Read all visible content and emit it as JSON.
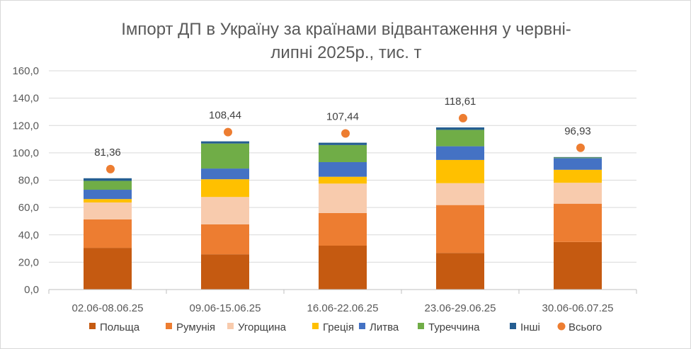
{
  "chart_data": {
    "type": "bar",
    "stacked": true,
    "title_line1": "Імпорт ДП в Україну за країнами відвантаження у червні-",
    "title_line2": "липні 2025р., тис. т",
    "ylim": [
      0,
      160
    ],
    "y_ticks": [
      "0,0",
      "20,0",
      "40,0",
      "60,0",
      "80,0",
      "100,0",
      "120,0",
      "140,0",
      "160,0"
    ],
    "y_tick_values": [
      0,
      20,
      40,
      60,
      80,
      100,
      120,
      140,
      160
    ],
    "grid": true,
    "legend_position": "bottom",
    "categories": [
      "02.06-08.06.25",
      "09.06-15.06.25",
      "16.06-22.06.25",
      "23.06-29.06.25",
      "30.06-06.07.25"
    ],
    "series": [
      {
        "name": "Польща",
        "color": "#c55a11",
        "values": [
          30.5,
          25.8,
          32.1,
          26.8,
          34.8
        ]
      },
      {
        "name": "Румунія",
        "color": "#ed7d31",
        "values": [
          20.8,
          21.9,
          23.9,
          35.0,
          28.0
        ]
      },
      {
        "name": "Угорщина",
        "color": "#f8cbad",
        "values": [
          12.4,
          20.0,
          21.5,
          16.0,
          15.3
        ]
      },
      {
        "name": "Греція",
        "color": "#ffc000",
        "values": [
          2.5,
          13.0,
          5.0,
          17.0,
          9.5
        ]
      },
      {
        "name": "Литва",
        "color": "#4472c4",
        "values": [
          6.8,
          7.8,
          10.7,
          10.0,
          8.5
        ]
      },
      {
        "name": "Туреччина",
        "color": "#70ad47",
        "values": [
          6.5,
          18.3,
          12.5,
          12.0,
          0.5
        ]
      },
      {
        "name": "Інші",
        "color": "#255e91",
        "values": [
          1.9,
          1.6,
          1.7,
          1.8,
          0.3
        ]
      }
    ],
    "total": {
      "name": "Всього",
      "color": "#ed7d31",
      "values": [
        81.36,
        108.44,
        107.44,
        118.61,
        96.93
      ],
      "labels": [
        "81,36",
        "108,44",
        "107,44",
        "118,61",
        "96,93"
      ]
    }
  }
}
